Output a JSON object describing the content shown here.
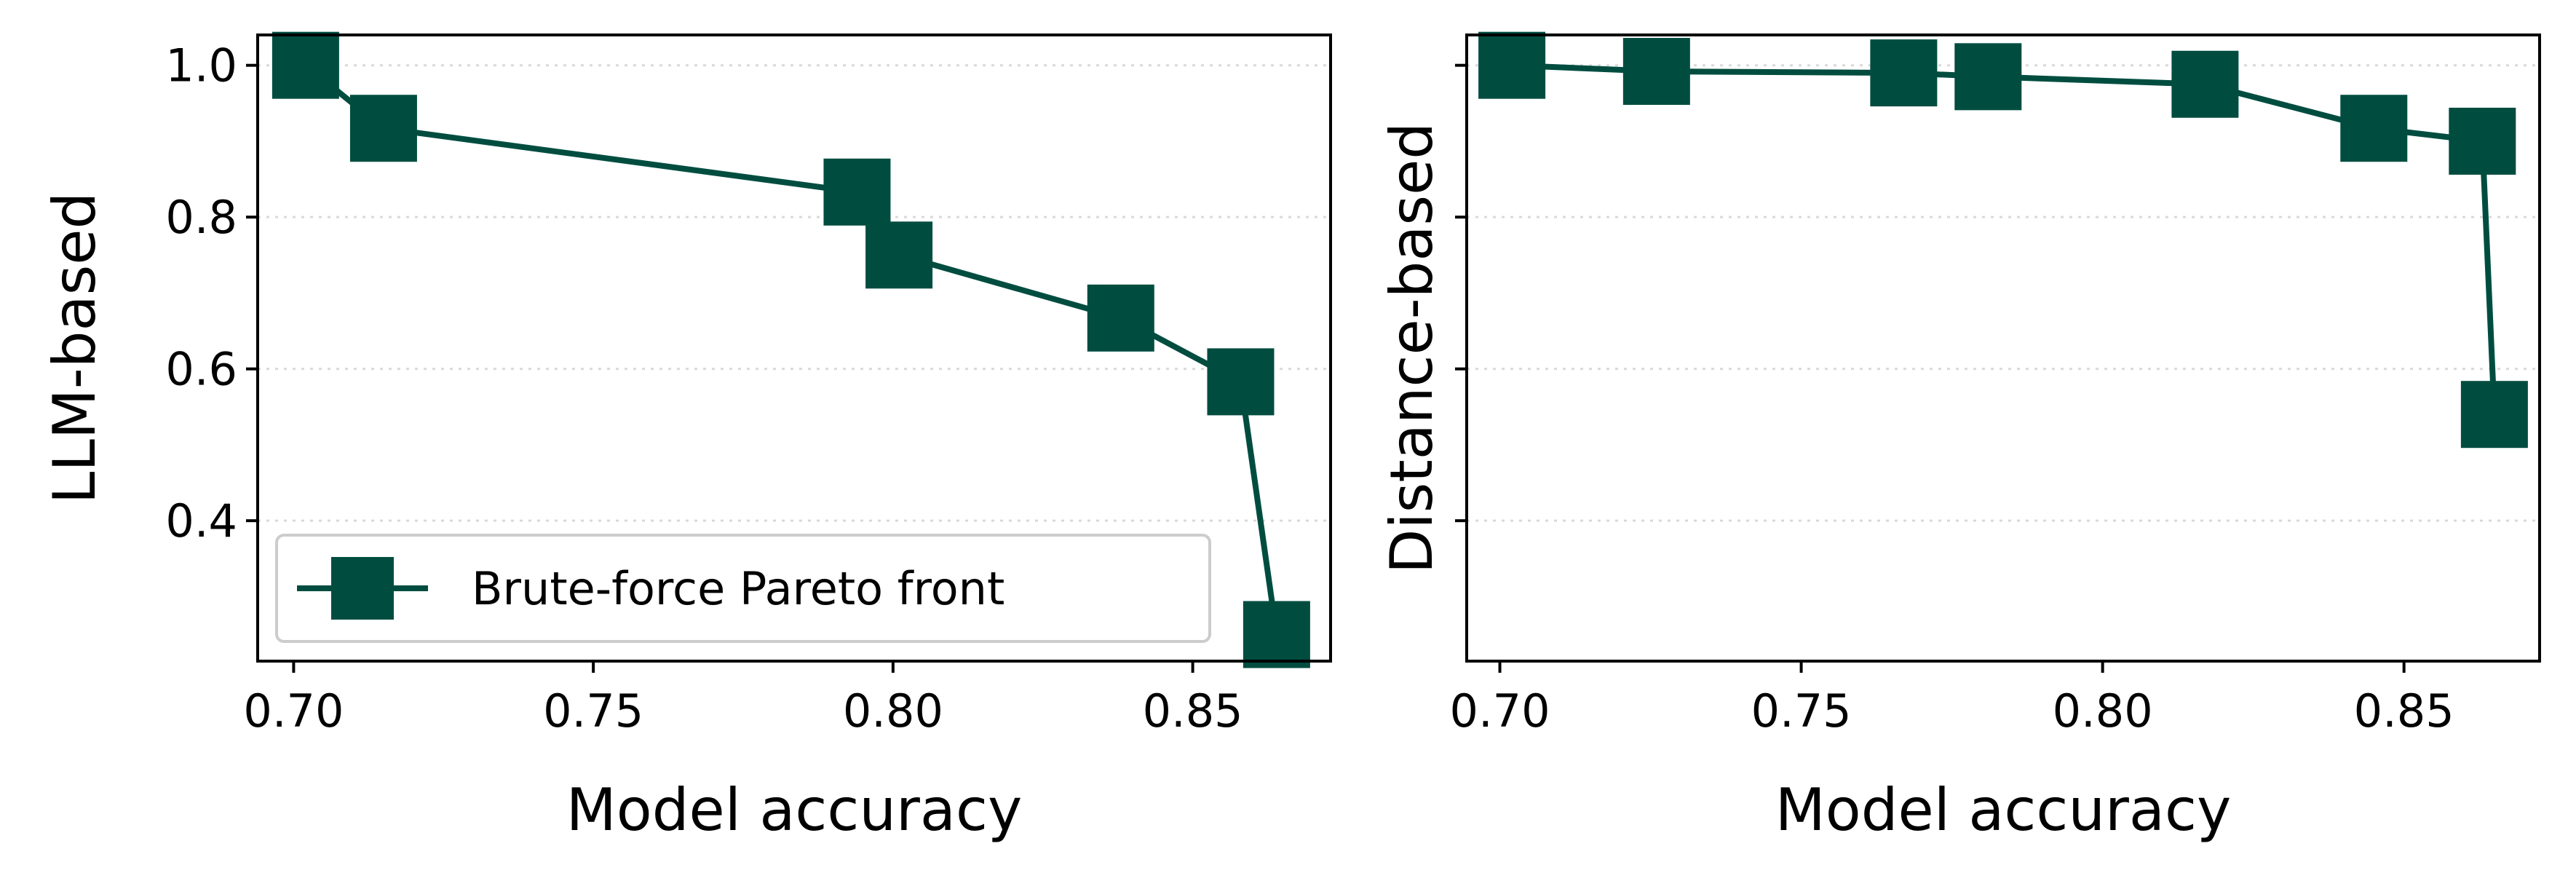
{
  "chart_data": [
    {
      "type": "line",
      "panel": "left",
      "xlabel": "Model accuracy",
      "ylabel": "LLM-based",
      "xlim": [
        0.694,
        0.873
      ],
      "ylim": [
        0.215,
        1.04
      ],
      "x_ticks": [
        0.7,
        0.75,
        0.8,
        0.85
      ],
      "x_tick_labels": [
        "0.70",
        "0.75",
        "0.80",
        "0.85"
      ],
      "y_ticks": [
        0.4,
        0.6,
        0.8,
        1.0
      ],
      "y_tick_labels": [
        "0.4",
        "0.6",
        "0.8",
        "1.0"
      ],
      "grid": "y-dotted",
      "legend": "lower-left",
      "series": [
        {
          "name": "Brute-force Pareto front",
          "color": "#004d40",
          "marker": "square",
          "x": [
            0.702,
            0.715,
            0.794,
            0.801,
            0.838,
            0.858,
            0.864
          ],
          "y": [
            1.0,
            0.917,
            0.833,
            0.75,
            0.667,
            0.583,
            0.25
          ]
        }
      ]
    },
    {
      "type": "line",
      "panel": "right",
      "xlabel": "Model accuracy",
      "ylabel": "Distance-based",
      "xlim": [
        0.6945,
        0.8725
      ],
      "ylim": [
        0.215,
        1.04
      ],
      "x_ticks": [
        0.7,
        0.75,
        0.8,
        0.85
      ],
      "x_tick_labels": [
        "0.70",
        "0.75",
        "0.80",
        "0.85"
      ],
      "y_ticks": [
        0.4,
        0.6,
        0.8,
        1.0
      ],
      "y_tick_labels": [
        "",
        "",
        "",
        ""
      ],
      "grid": "y-dotted",
      "series": [
        {
          "color": "#004d40",
          "marker": "square",
          "x": [
            0.702,
            0.726,
            0.767,
            0.781,
            0.817,
            0.845,
            0.863,
            0.865
          ],
          "y": [
            1.0,
            0.992,
            0.99,
            0.985,
            0.975,
            0.917,
            0.9,
            0.54
          ]
        }
      ]
    }
  ]
}
